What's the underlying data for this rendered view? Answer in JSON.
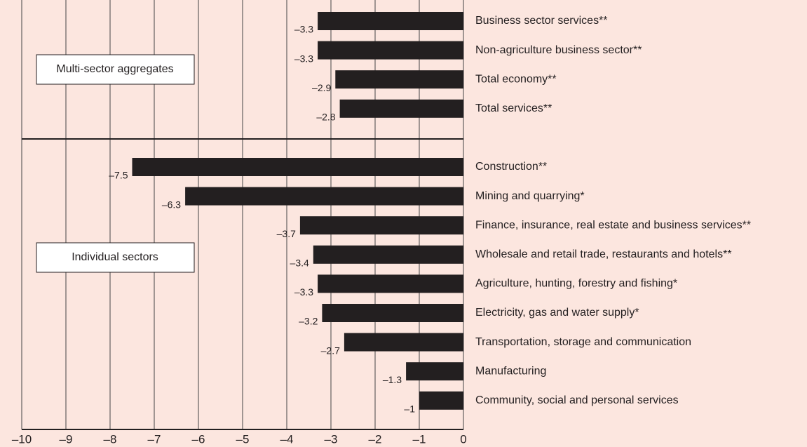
{
  "chart_data": {
    "type": "barh",
    "groups": [
      {
        "label": "Multi-sector aggregates",
        "categories": [
          "Business sector services**",
          "Non-agriculture business sector**",
          "Total economy**",
          "Total services**"
        ],
        "values": [
          -3.3,
          -3.3,
          -2.9,
          -2.8
        ],
        "value_labels": [
          "–3.3",
          "–3.3",
          "–2.9",
          "–2.8"
        ]
      },
      {
        "label": "Individual sectors",
        "categories": [
          "Construction**",
          "Mining and quarrying*",
          "Finance, insurance, real estate and business services**",
          "Wholesale and retail trade, restaurants and hotels**",
          "Agriculture, hunting, forestry and fishing*",
          "Electricity, gas and water supply*",
          "Transportation, storage and communication",
          "Manufacturing",
          "Community, social and personal services"
        ],
        "values": [
          -7.5,
          -6.3,
          -3.7,
          -3.4,
          -3.3,
          -3.2,
          -2.7,
          -1.3,
          -1
        ],
        "value_labels": [
          "–7.5",
          "–6.3",
          "–3.7",
          "–3.4",
          "–3.3",
          "–3.2",
          "–2.7",
          "–1.3",
          "–1"
        ]
      }
    ],
    "color": "#231f20",
    "xlim": [
      -10,
      0
    ],
    "xticks": [
      {
        "value": -10,
        "label": "–10"
      },
      {
        "value": -9,
        "label": "–9"
      },
      {
        "value": -8,
        "label": "–8"
      },
      {
        "value": -7,
        "label": "–7"
      },
      {
        "value": -6,
        "label": "–6"
      },
      {
        "value": -5,
        "label": "–5"
      },
      {
        "value": -4,
        "label": "–4"
      },
      {
        "value": -3,
        "label": "–3"
      },
      {
        "value": -2,
        "label": "–2"
      },
      {
        "value": -1,
        "label": "–1"
      },
      0
    ],
    "grid": true
  }
}
